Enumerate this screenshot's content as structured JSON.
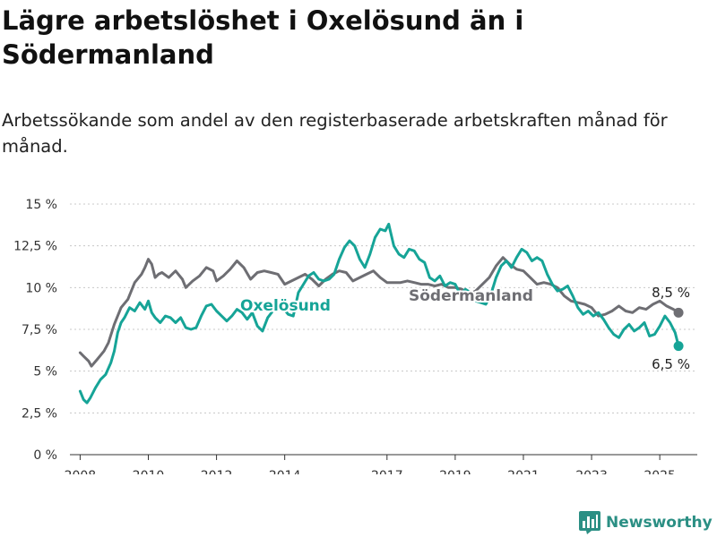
{
  "title": "Lägre arbetslöshet i Oxelösund än i Södermanland",
  "subtitle": "Arbetssökande som andel av den registerbaserade arbetskraften månad för månad.",
  "brand": {
    "name": "Newsworthy",
    "icon": "bar-chart-logo-icon",
    "color": "#2b8f84"
  },
  "chart_data": {
    "type": "line",
    "title": "Lägre arbetslöshet i Oxelösund än i Södermanland",
    "subtitle": "Arbetssökande som andel av den registerbaserade arbetskraften månad för månad.",
    "xlabel": "",
    "ylabel": "",
    "xlim": [
      2007.7,
      2026.1
    ],
    "ylim": [
      0,
      15
    ],
    "grid": true,
    "x_ticks": [
      {
        "value": 2008,
        "label": "2008"
      },
      {
        "value": 2010,
        "label": "2010"
      },
      {
        "value": 2012,
        "label": "2012"
      },
      {
        "value": 2014,
        "label": "2014"
      },
      {
        "value": 2017,
        "label": "2017"
      },
      {
        "value": 2019,
        "label": "2019"
      },
      {
        "value": 2021,
        "label": "2021"
      },
      {
        "value": 2023,
        "label": "2023"
      },
      {
        "value": 2025,
        "label": "2025"
      }
    ],
    "y_ticks": [
      {
        "value": 0,
        "label": "0 %"
      },
      {
        "value": 2.5,
        "label": "2,5 %"
      },
      {
        "value": 5,
        "label": "5 %"
      },
      {
        "value": 7.5,
        "label": "7,5 %"
      },
      {
        "value": 10,
        "label": "10 %"
      },
      {
        "value": 12.5,
        "label": "12,5 %"
      },
      {
        "value": 15,
        "label": "15 %"
      }
    ],
    "series": [
      {
        "name": "Södermanland",
        "color": "#6e6e73",
        "end_label": "8,5 %",
        "x": [
          2008.0,
          2008.1,
          2008.25,
          2008.33,
          2008.5,
          2008.7,
          2008.83,
          2009.0,
          2009.2,
          2009.4,
          2009.6,
          2009.8,
          2009.9,
          2010.0,
          2010.1,
          2010.2,
          2010.3,
          2010.4,
          2010.6,
          2010.8,
          2011.0,
          2011.1,
          2011.3,
          2011.5,
          2011.7,
          2011.9,
          2012.0,
          2012.2,
          2012.4,
          2012.6,
          2012.8,
          2013.0,
          2013.2,
          2013.4,
          2013.6,
          2013.8,
          2014.0,
          2014.2,
          2014.4,
          2014.6,
          2014.8,
          2015.0,
          2015.2,
          2015.4,
          2015.6,
          2015.8,
          2016.0,
          2016.2,
          2016.4,
          2016.6,
          2016.8,
          2017.0,
          2017.2,
          2017.4,
          2017.6,
          2017.8,
          2018.0,
          2018.2,
          2018.4,
          2018.6,
          2018.8,
          2019.0,
          2019.2,
          2019.4,
          2019.6,
          2019.8,
          2020.0,
          2020.2,
          2020.4,
          2020.6,
          2020.8,
          2021.0,
          2021.2,
          2021.4,
          2021.6,
          2021.8,
          2022.0,
          2022.2,
          2022.4,
          2022.6,
          2022.8,
          2023.0,
          2023.2,
          2023.4,
          2023.6,
          2023.8,
          2024.0,
          2024.2,
          2024.4,
          2024.6,
          2024.8,
          2025.0,
          2025.2,
          2025.4,
          2025.55
        ],
        "y": [
          6.1,
          5.9,
          5.6,
          5.3,
          5.7,
          6.2,
          6.7,
          7.8,
          8.8,
          9.3,
          10.3,
          10.8,
          11.2,
          11.7,
          11.4,
          10.6,
          10.8,
          10.9,
          10.6,
          11.0,
          10.5,
          10.0,
          10.4,
          10.7,
          11.2,
          11.0,
          10.4,
          10.7,
          11.1,
          11.6,
          11.2,
          10.5,
          10.9,
          11.0,
          10.9,
          10.8,
          10.2,
          10.4,
          10.6,
          10.8,
          10.5,
          10.1,
          10.5,
          10.8,
          11.0,
          10.9,
          10.4,
          10.6,
          10.8,
          11.0,
          10.6,
          10.3,
          10.3,
          10.3,
          10.4,
          10.3,
          10.2,
          10.2,
          10.1,
          10.2,
          10.0,
          10.0,
          9.9,
          9.6,
          9.8,
          10.2,
          10.6,
          11.3,
          11.8,
          11.4,
          11.1,
          11.0,
          10.6,
          10.2,
          10.3,
          10.2,
          10.0,
          9.5,
          9.2,
          9.1,
          9.0,
          8.8,
          8.3,
          8.4,
          8.6,
          8.9,
          8.6,
          8.5,
          8.8,
          8.7,
          9.0,
          9.2,
          8.9,
          8.7,
          8.5
        ]
      },
      {
        "name": "Oxelösund",
        "color": "#16a497",
        "end_label": "6,5 %",
        "x": [
          2008.0,
          2008.1,
          2008.2,
          2008.3,
          2008.45,
          2008.6,
          2008.75,
          2008.9,
          2009.0,
          2009.1,
          2009.2,
          2009.3,
          2009.45,
          2009.6,
          2009.75,
          2009.9,
          2010.0,
          2010.1,
          2010.2,
          2010.35,
          2010.5,
          2010.65,
          2010.8,
          2010.95,
          2011.1,
          2011.25,
          2011.4,
          2011.55,
          2011.7,
          2011.85,
          2012.0,
          2012.15,
          2012.3,
          2012.45,
          2012.6,
          2012.75,
          2012.9,
          2013.05,
          2013.2,
          2013.35,
          2013.5,
          2013.65,
          2013.8,
          2013.95,
          2014.1,
          2014.25,
          2014.4,
          2014.55,
          2014.7,
          2014.85,
          2015.0,
          2015.15,
          2015.3,
          2015.45,
          2015.6,
          2015.75,
          2015.9,
          2016.05,
          2016.2,
          2016.35,
          2016.5,
          2016.65,
          2016.8,
          2016.95,
          2017.05,
          2017.2,
          2017.35,
          2017.5,
          2017.65,
          2017.8,
          2017.95,
          2018.1,
          2018.25,
          2018.4,
          2018.55,
          2018.7,
          2018.85,
          2019.0,
          2019.15,
          2019.3,
          2019.45,
          2019.6,
          2019.75,
          2019.9,
          2020.05,
          2020.2,
          2020.35,
          2020.5,
          2020.65,
          2020.8,
          2020.95,
          2021.1,
          2021.25,
          2021.4,
          2021.55,
          2021.7,
          2021.85,
          2022.0,
          2022.15,
          2022.3,
          2022.45,
          2022.6,
          2022.75,
          2022.9,
          2023.05,
          2023.2,
          2023.35,
          2023.5,
          2023.65,
          2023.8,
          2023.95,
          2024.1,
          2024.25,
          2024.4,
          2024.55,
          2024.7,
          2024.85,
          2025.0,
          2025.15,
          2025.3,
          2025.45,
          2025.55
        ],
        "y": [
          3.8,
          3.3,
          3.1,
          3.4,
          4.0,
          4.5,
          4.8,
          5.5,
          6.2,
          7.3,
          7.9,
          8.2,
          8.8,
          8.6,
          9.1,
          8.7,
          9.2,
          8.5,
          8.2,
          7.9,
          8.3,
          8.2,
          7.9,
          8.2,
          7.6,
          7.5,
          7.6,
          8.3,
          8.9,
          9.0,
          8.6,
          8.3,
          8.0,
          8.3,
          8.7,
          8.5,
          8.1,
          8.5,
          7.7,
          7.4,
          8.2,
          8.6,
          9.1,
          8.8,
          8.4,
          8.3,
          9.7,
          10.2,
          10.7,
          10.9,
          10.5,
          10.4,
          10.5,
          10.8,
          11.7,
          12.4,
          12.8,
          12.5,
          11.7,
          11.2,
          12.0,
          13.0,
          13.5,
          13.4,
          13.8,
          12.5,
          12.0,
          11.8,
          12.3,
          12.2,
          11.7,
          11.5,
          10.6,
          10.4,
          10.7,
          10.1,
          10.3,
          10.2,
          9.6,
          9.9,
          9.7,
          9.2,
          9.1,
          9.0,
          9.6,
          10.6,
          11.3,
          11.6,
          11.2,
          11.8,
          12.3,
          12.1,
          11.6,
          11.8,
          11.6,
          10.8,
          10.2,
          9.8,
          9.9,
          10.1,
          9.5,
          8.8,
          8.4,
          8.6,
          8.3,
          8.5,
          8.1,
          7.6,
          7.2,
          7.0,
          7.5,
          7.8,
          7.4,
          7.6,
          7.9,
          7.1,
          7.2,
          7.7,
          8.3,
          7.9,
          7.3,
          6.5
        ]
      }
    ]
  }
}
